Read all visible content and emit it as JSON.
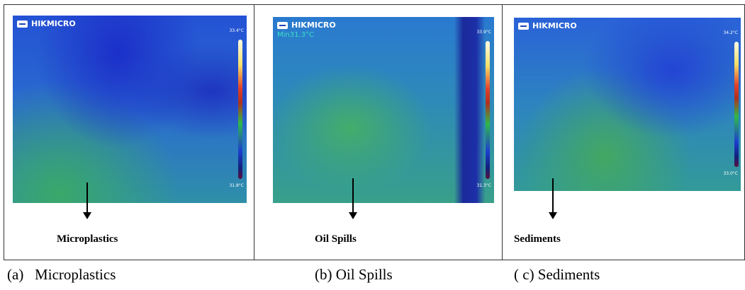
{
  "panels": [
    {
      "brand": "HIKMICRO",
      "max_temp": "33.4°C",
      "min_temp": "31.8°C",
      "label": "Microplastics",
      "caption": "(a)   Microplastics"
    },
    {
      "brand": "HIKMICRO",
      "min_reading": "Min31.3°C",
      "max_temp": "33.9°C",
      "min_temp": "31.3°C",
      "label": "Oil Spills",
      "caption": "(b) Oil Spills"
    },
    {
      "brand": "HIKMICRO",
      "max_temp": "34.2°C",
      "min_temp": "33.0°C",
      "label": "Sediments",
      "caption": "( c) Sediments"
    }
  ]
}
